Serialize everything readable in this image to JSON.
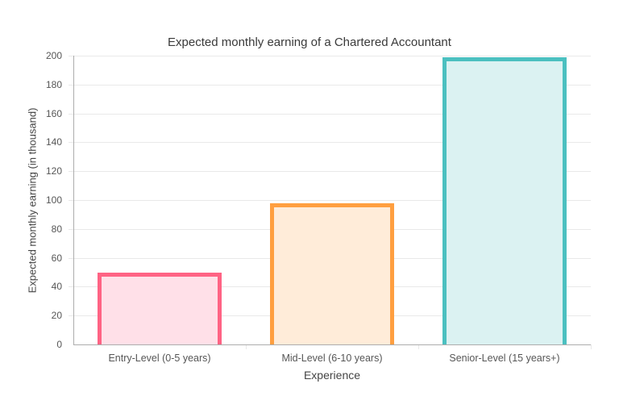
{
  "chart_data": {
    "type": "bar",
    "title": "Expected monthly earning of a Chartered Accountant",
    "xlabel": "Experience",
    "ylabel": "Expected monthly earning (in thousand)",
    "categories": [
      "Entry-Level (0-5 years)",
      "Mid-Level (6-10 years)",
      "Senior-Level (15 years+)"
    ],
    "values": [
      50,
      98,
      199
    ],
    "ylim": [
      0,
      200
    ],
    "yticks": [
      0,
      20,
      40,
      60,
      80,
      100,
      120,
      140,
      160,
      180,
      200
    ],
    "grid": "horizontal-only",
    "legend": "none",
    "bar_styles": [
      {
        "border": "#ff6384",
        "fill": "#ffe0e8"
      },
      {
        "border": "#ff9f40",
        "fill": "#ffecd9"
      },
      {
        "border": "#4bc0c0",
        "fill": "#dbf2f2"
      }
    ],
    "colors": {
      "axis_line": "#adadad",
      "grid_line": "#e9e9e9",
      "tick_text": "#565656",
      "title_text": "#3a3a3a",
      "background": "#ffffff"
    }
  }
}
